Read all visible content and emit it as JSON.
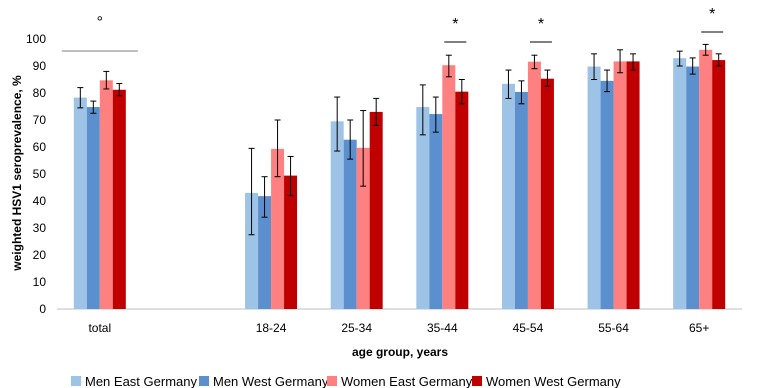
{
  "chart_data": {
    "type": "bar",
    "title": "",
    "xlabel": "age group, years",
    "ylabel": "weighted HSV1 seroprevalence, %",
    "ylim": [
      0,
      100
    ],
    "yticks": [
      0,
      10,
      20,
      30,
      40,
      50,
      60,
      70,
      80,
      90,
      100
    ],
    "grid": false,
    "legend_position": "bottom",
    "categories": [
      "total",
      "",
      "18-24",
      "25-34",
      "35-44",
      "45-54",
      "55-64",
      "65+"
    ],
    "series": [
      {
        "name": "Men East Germany",
        "color": "#9dc3e6",
        "values": [
          78.3,
          null,
          43.0,
          69.5,
          74.8,
          83.4,
          89.8,
          92.9
        ],
        "err_low": [
          74.5,
          null,
          27.5,
          58.5,
          64.5,
          78.0,
          85.0,
          90.0
        ],
        "err_high": [
          82.0,
          null,
          59.5,
          78.5,
          83.0,
          88.5,
          94.5,
          95.5
        ]
      },
      {
        "name": "Men West Germany",
        "color": "#5b8fce",
        "values": [
          74.8,
          null,
          41.8,
          62.7,
          72.2,
          80.4,
          84.5,
          89.8
        ],
        "err_low": [
          72.5,
          null,
          34.0,
          55.5,
          65.5,
          76.0,
          80.5,
          87.0
        ],
        "err_high": [
          77.0,
          null,
          49.0,
          70.0,
          78.5,
          84.5,
          88.5,
          93.0
        ]
      },
      {
        "name": "Women East Germany",
        "color": "#ff8080",
        "values": [
          84.7,
          null,
          59.3,
          59.7,
          90.3,
          91.6,
          91.7,
          96.0
        ],
        "err_low": [
          81.5,
          null,
          49.0,
          45.5,
          86.0,
          89.0,
          87.5,
          94.0
        ],
        "err_high": [
          88.0,
          null,
          70.0,
          73.5,
          94.0,
          94.0,
          96.0,
          98.0
        ]
      },
      {
        "name": "Women West Germany",
        "color": "#c00000",
        "values": [
          81.2,
          null,
          49.4,
          73.0,
          80.5,
          85.3,
          91.7,
          92.2
        ],
        "err_low": [
          79.0,
          null,
          42.0,
          68.0,
          76.0,
          82.5,
          88.5,
          90.0
        ],
        "err_high": [
          83.5,
          null,
          56.5,
          78.0,
          85.0,
          88.5,
          94.5,
          94.5
        ]
      }
    ],
    "annotations": [
      {
        "category": "total",
        "text": "°",
        "bracket": "all"
      },
      {
        "category": "35-44",
        "text": "*",
        "bracket": "women"
      },
      {
        "category": "45-54",
        "text": "*",
        "bracket": "women"
      },
      {
        "category": "65+",
        "text": "*",
        "bracket": "women"
      }
    ]
  }
}
